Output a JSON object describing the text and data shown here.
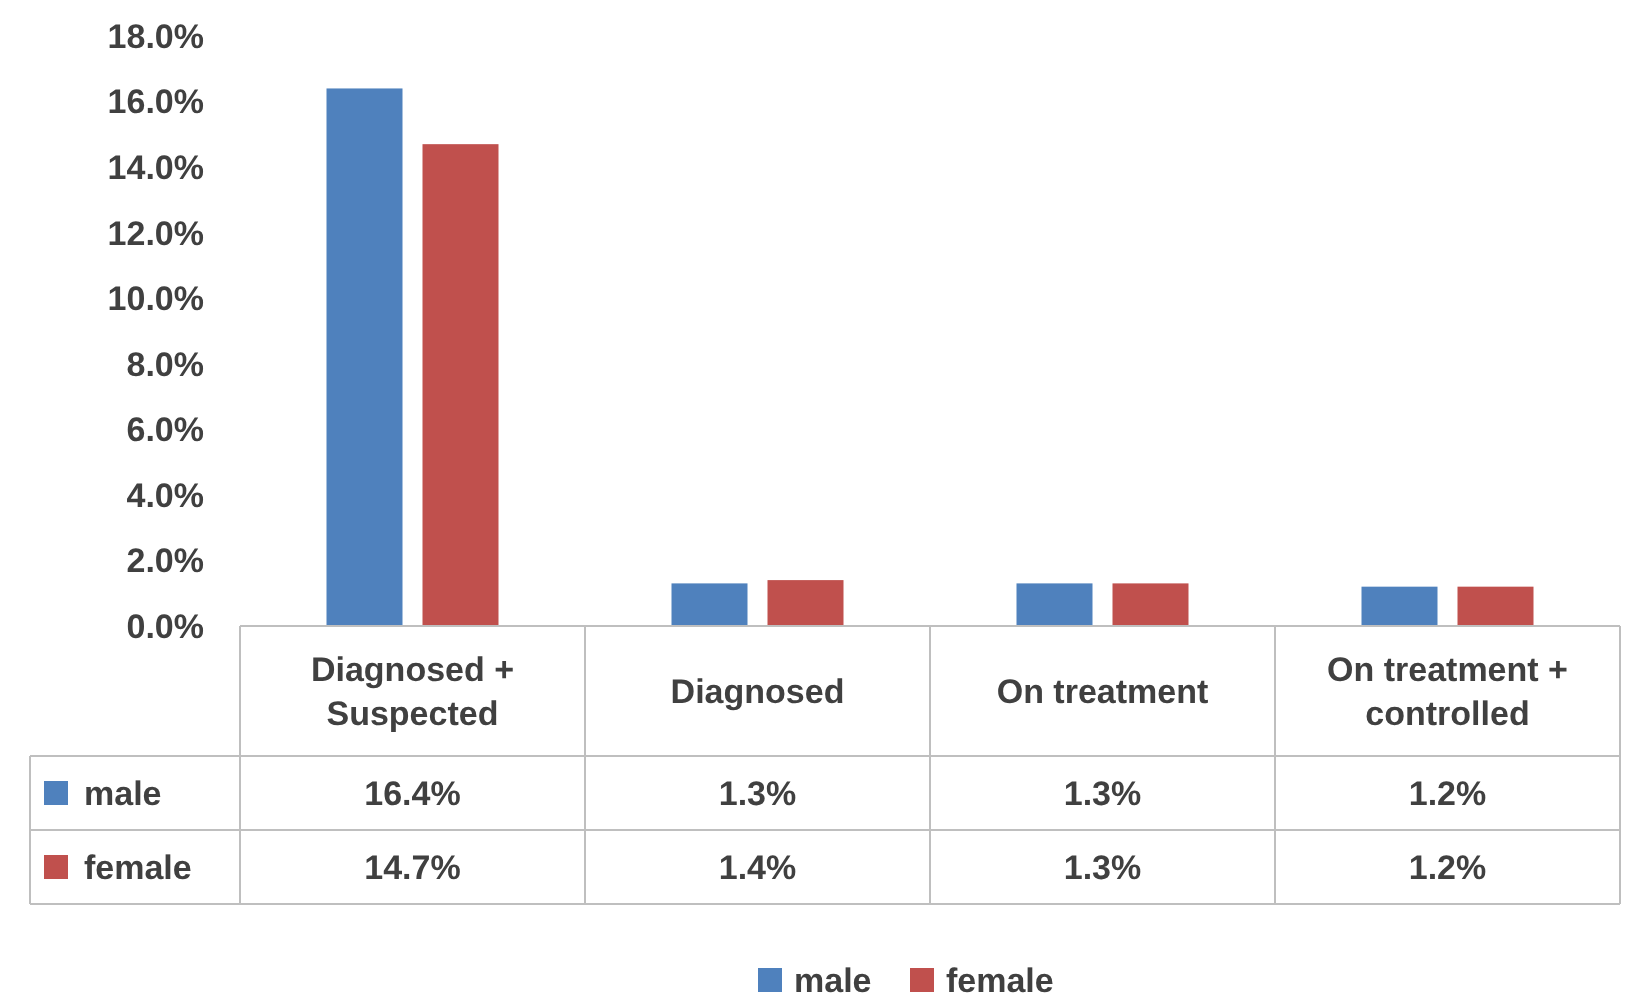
{
  "chart_data": {
    "type": "bar",
    "categories": [
      "Diagnosed + Suspected",
      "Diagnosed",
      "On treatment",
      "On treatment + controlled"
    ],
    "series": [
      {
        "name": "male",
        "color": "#4f81bd",
        "values": [
          16.4,
          1.3,
          1.3,
          1.2
        ],
        "value_labels": [
          "16.4%",
          "1.3%",
          "1.3%",
          "1.2%"
        ]
      },
      {
        "name": "female",
        "color": "#c0504d",
        "values": [
          14.7,
          1.4,
          1.3,
          1.2
        ],
        "value_labels": [
          "14.7%",
          "1.4%",
          "1.3%",
          "1.2%"
        ]
      }
    ],
    "ylim": [
      0,
      18
    ],
    "yticks": [
      {
        "value": 0,
        "label": "0.0%"
      },
      {
        "value": 2,
        "label": "2.0%"
      },
      {
        "value": 4,
        "label": "4.0%"
      },
      {
        "value": 6,
        "label": "6.0%"
      },
      {
        "value": 8,
        "label": "8.0%"
      },
      {
        "value": 10,
        "label": "10.0%"
      },
      {
        "value": 12,
        "label": "12.0%"
      },
      {
        "value": 14,
        "label": "14.0%"
      },
      {
        "value": 16,
        "label": "16.0%"
      },
      {
        "value": 18,
        "label": "18.0%"
      }
    ],
    "grid": false,
    "legend": "bottom"
  }
}
